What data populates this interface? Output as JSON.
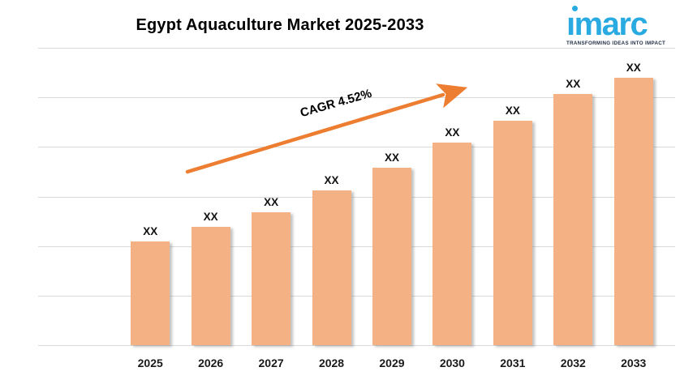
{
  "header": {
    "title": "Egypt Aquaculture Market 2025-2033",
    "logo": {
      "brand": "imarc",
      "tagline": "TRANSFORMING IDEAS INTO IMPACT",
      "brand_color": "#29ABE2",
      "tagline_color": "#232F46"
    }
  },
  "chart_data": {
    "type": "bar",
    "title": "Egypt Aquaculture Market 2025-2033",
    "categories": [
      "2025",
      "2026",
      "2027",
      "2028",
      "2029",
      "2030",
      "2031",
      "2032",
      "2033"
    ],
    "values": [
      "XX",
      "XX",
      "XX",
      "XX",
      "XX",
      "XX",
      "XX",
      "XX",
      "XX"
    ],
    "relative_heights": [
      0.349,
      0.398,
      0.447,
      0.52,
      0.597,
      0.681,
      0.755,
      0.845,
      0.899
    ],
    "annotation": "CAGR 4.52%",
    "xlabel": "",
    "ylabel": "",
    "value_axis_labels": "none",
    "legend_position": "none",
    "gridline_count": 7,
    "bar_color": "#F4B183",
    "accent_color": "#ED7D31",
    "gridline_color": "#D9D9D9",
    "label_color": "#111111"
  }
}
